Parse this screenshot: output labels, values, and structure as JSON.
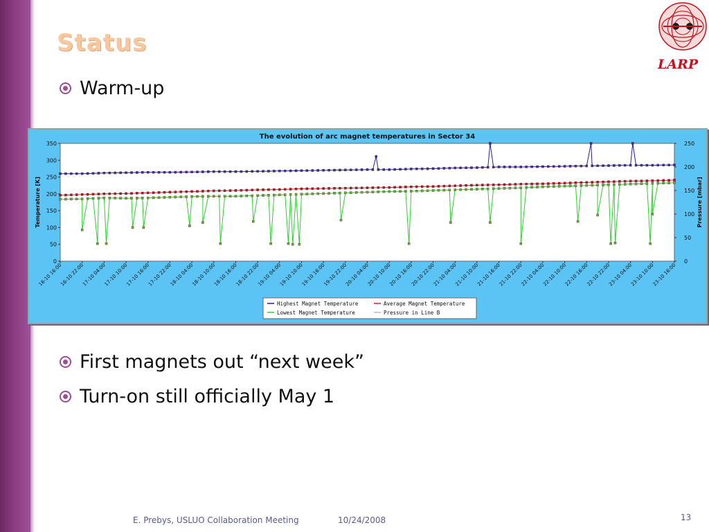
{
  "slide": {
    "title": "Status",
    "logo_text": "LARP",
    "bullets": [
      "Warm-up",
      "First magnets out “next week”",
      "Turn-on still officially May 1"
    ],
    "footer_author": "E. Prebys, USLUO Collaboration Meeting",
    "footer_date": "10/24/2008",
    "page_number": "13"
  },
  "colors": {
    "accent": "#a24a97",
    "title": "#f7c79d",
    "chart_bg": "#5bc4f4",
    "highest": "#2a1a9e",
    "average": "#d8202a",
    "lowest": "#2bd12b",
    "pressure": "#bbbbbb"
  },
  "chart_data": {
    "type": "line",
    "title": "The evolution of arc magnet temperatures in Sector 34",
    "ylabel": "Temperature [K]",
    "y2label": "Pressure [mbar]",
    "ylim": [
      0,
      350
    ],
    "y2lim": [
      0,
      250
    ],
    "yticks": [
      0,
      50,
      100,
      150,
      200,
      250,
      300,
      350
    ],
    "y2ticks": [
      0,
      50,
      100,
      150,
      200,
      250
    ],
    "categories": [
      "16-10 16:00",
      "16-10 22:00",
      "17-10 04:00",
      "17-10 10:00",
      "17-10 16:00",
      "17-10 22:00",
      "18-10 04:00",
      "18-10 10:00",
      "18-10 16:00",
      "18-10 22:00",
      "19-10 04:00",
      "19-10 10:00",
      "19-10 16:00",
      "19-10 22:00",
      "20-10 04:00",
      "20-10 10:00",
      "20-10 16:00",
      "20-10 22:00",
      "21-10 04:00",
      "21-10 10:00",
      "21-10 16:00",
      "21-10 22:00",
      "22-10 04:00",
      "22-10 10:00",
      "22-10 16:00",
      "22-10 22:00",
      "23-10 04:00",
      "23-10 10:00",
      "23-10 16:00"
    ],
    "legend": [
      "Highest Magnet Temperature",
      "Average Magnet Temperature",
      "Lowest Magnet Temperature",
      "Pressure in Line B"
    ],
    "legend_position": "bottom-center",
    "series": [
      {
        "name": "Highest Magnet Temperature",
        "values": [
          260,
          260,
          262,
          263,
          264,
          264,
          265,
          266,
          266,
          267,
          268,
          269,
          270,
          271,
          272,
          272,
          274,
          275,
          277,
          278,
          280,
          280,
          281,
          282,
          283,
          284,
          285,
          285,
          286
        ]
      },
      {
        "name": "Average Magnet Temperature",
        "values": [
          196,
          198,
          200,
          201,
          203,
          205,
          207,
          209,
          210,
          212,
          213,
          215,
          216,
          217,
          218,
          219,
          221,
          222,
          224,
          226,
          227,
          229,
          230,
          232,
          234,
          236,
          238,
          239,
          241
        ]
      },
      {
        "name": "Lowest Magnet Temperature",
        "values": [
          184,
          185,
          188,
          187,
          188,
          190,
          192,
          193,
          193,
          195,
          197,
          199,
          201,
          203,
          205,
          207,
          208,
          210,
          212,
          214,
          216,
          218,
          221,
          223,
          225,
          227,
          229,
          231,
          233
        ]
      }
    ],
    "highest_spikes": [
      {
        "x": 14.4,
        "y": 311
      },
      {
        "x": 19.6,
        "y": 350
      },
      {
        "x": 24.2,
        "y": 350
      },
      {
        "x": 26.1,
        "y": 350
      }
    ],
    "lowest_dips": [
      {
        "x": 1.0,
        "y": 93
      },
      {
        "x": 1.7,
        "y": 52
      },
      {
        "x": 2.1,
        "y": 52
      },
      {
        "x": 3.3,
        "y": 100
      },
      {
        "x": 3.8,
        "y": 100
      },
      {
        "x": 5.9,
        "y": 105
      },
      {
        "x": 6.5,
        "y": 115
      },
      {
        "x": 7.3,
        "y": 52
      },
      {
        "x": 8.8,
        "y": 118
      },
      {
        "x": 9.6,
        "y": 52
      },
      {
        "x": 10.4,
        "y": 52
      },
      {
        "x": 10.6,
        "y": 50
      },
      {
        "x": 10.9,
        "y": 50
      },
      {
        "x": 12.8,
        "y": 122
      },
      {
        "x": 15.9,
        "y": 52
      },
      {
        "x": 17.8,
        "y": 115
      },
      {
        "x": 19.6,
        "y": 115
      },
      {
        "x": 21.0,
        "y": 52
      },
      {
        "x": 23.6,
        "y": 118
      },
      {
        "x": 24.5,
        "y": 137
      },
      {
        "x": 25.1,
        "y": 52
      },
      {
        "x": 25.3,
        "y": 54
      },
      {
        "x": 26.9,
        "y": 52
      },
      {
        "x": 27.0,
        "y": 140
      }
    ]
  }
}
